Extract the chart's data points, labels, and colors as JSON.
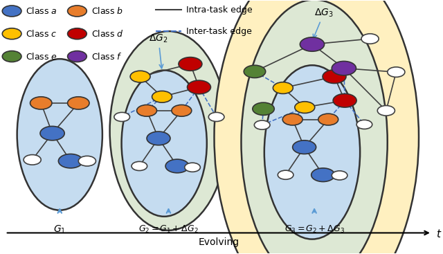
{
  "fig_width": 6.4,
  "fig_height": 3.67,
  "dpi": 100,
  "bg_color": "#ffffff",
  "class_colors": {
    "a": "#4472C4",
    "b": "#E87D2B",
    "c": "#FFC000",
    "d": "#C00000",
    "e": "#548235",
    "f": "#7030A0"
  },
  "arrow_color": "#5B9BD5",
  "intra_edge_color": "#404040",
  "inter_edge_color": "#4472C4",
  "white_node_color": "#ffffff",
  "white_node_edge": "#404040",
  "evolving_label": "Evolving",
  "t_label": "$t$"
}
